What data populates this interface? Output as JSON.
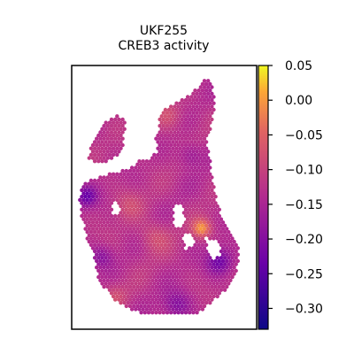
{
  "chart_data": {
    "type": "heatmap",
    "title": "UKF255",
    "subtitle": "CREB3 activity",
    "xlabel": "",
    "ylabel": "",
    "grid": false,
    "colormap": "plasma",
    "colorbar": {
      "vmin": -0.33,
      "vmax": 0.05,
      "ticks": [
        0.05,
        0.0,
        -0.05,
        -0.1,
        -0.15,
        -0.2,
        -0.25,
        -0.3
      ],
      "tick_labels": [
        "0.05",
        "0.00",
        "−0.05",
        "−0.10",
        "−0.15",
        "−0.20",
        "−0.25",
        "−0.30"
      ]
    },
    "mean_value": -0.13,
    "hot_regions": [
      "right-center",
      "upper-middle",
      "center-left"
    ],
    "cold_regions": [
      "left-edge",
      "lower-right",
      "bottom-center"
    ]
  },
  "colors": {
    "low": "#0d0887",
    "mid": "#cc4778",
    "high": "#f0f921",
    "frame": "#000000",
    "background": "#ffffff"
  }
}
